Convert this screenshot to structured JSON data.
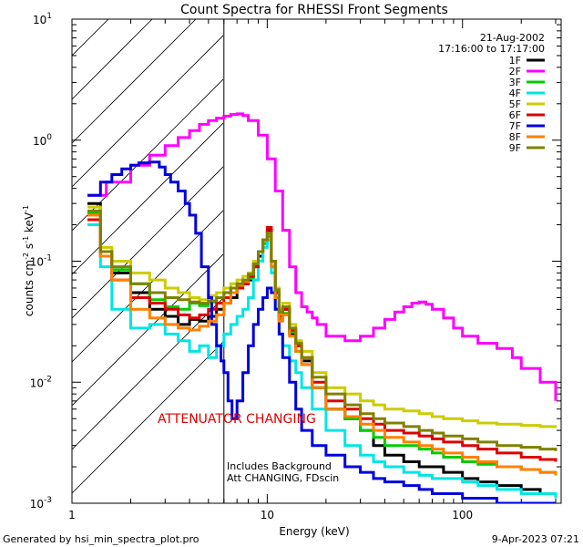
{
  "chart_data": {
    "type": "line",
    "title": "Count Spectra for RHESSI Front Segments",
    "xlabel": "Energy (keV)",
    "ylabel_base": "counts cm",
    "ylabel_sup1": "-2",
    "ylabel_mid": " s",
    "ylabel_sup2": "-1",
    "ylabel_end": " keV",
    "ylabel_sup3": "-1",
    "x_scale": "log",
    "y_scale": "log",
    "xlim": [
      1,
      320
    ],
    "ylim": [
      0.001,
      10
    ],
    "x_ticks": [
      {
        "v": 1,
        "label": "1"
      },
      {
        "v": 10,
        "label": "10"
      },
      {
        "v": 100,
        "label": "100"
      }
    ],
    "y_ticks": [
      {
        "v": 0.001,
        "base": "10",
        "exp": "-3"
      },
      {
        "v": 0.01,
        "base": "10",
        "exp": "-2"
      },
      {
        "v": 0.1,
        "base": "10",
        "exp": "-1"
      },
      {
        "v": 1,
        "base": "10",
        "exp": "0"
      },
      {
        "v": 10,
        "base": "10",
        "exp": "1"
      }
    ],
    "date": "21-Aug-2002",
    "time_range": "17:16:00 to 17:17:00",
    "attenuator_label": "ATTENUATOR CHANGING",
    "attenuator_boundary_keV": 6,
    "note_line1": "Includes Background",
    "note_line2": "Att CHANGING, FDscin",
    "footer_left": "Generated by hsi_min_spectra_plot.pro",
    "footer_right": "9-Apr-2023 07:21",
    "series": [
      {
        "name": "1F",
        "color": "#000000",
        "x": [
          1.2,
          1.4,
          1.6,
          2,
          2.5,
          3,
          3.5,
          4,
          4.5,
          5,
          5.5,
          6,
          6.5,
          7,
          7.5,
          8,
          8.5,
          9,
          9.5,
          10,
          10.5,
          11,
          11.5,
          12,
          13,
          14,
          15,
          17,
          20,
          25,
          30,
          35,
          40,
          50,
          60,
          70,
          80,
          100,
          120,
          150,
          200,
          250,
          300
        ],
        "y": [
          0.3,
          0.12,
          0.08,
          0.055,
          0.04,
          0.035,
          0.03,
          0.033,
          0.032,
          0.035,
          0.04,
          0.045,
          0.05,
          0.06,
          0.065,
          0.07,
          0.09,
          0.11,
          0.14,
          0.18,
          0.1,
          0.055,
          0.035,
          0.04,
          0.025,
          0.02,
          0.015,
          0.009,
          0.006,
          0.005,
          0.004,
          0.003,
          0.0025,
          0.0022,
          0.002,
          0.002,
          0.0018,
          0.0016,
          0.0015,
          0.0014,
          0.0013,
          0.0012,
          0.0012
        ]
      },
      {
        "name": "2F",
        "color": "#ff00ff",
        "x": [
          1.2,
          1.5,
          2,
          2.5,
          3,
          3.5,
          4,
          4.5,
          5,
          5.5,
          6,
          6.5,
          7,
          7.5,
          8,
          9,
          10,
          11,
          12,
          13,
          14,
          15,
          16,
          17,
          18,
          20,
          25,
          30,
          35,
          40,
          45,
          50,
          55,
          60,
          65,
          70,
          80,
          90,
          100,
          120,
          150,
          180,
          200,
          250,
          300
        ],
        "y": [
          0.35,
          0.45,
          0.62,
          0.75,
          0.9,
          1.05,
          1.2,
          1.35,
          1.45,
          1.52,
          1.58,
          1.63,
          1.65,
          1.6,
          1.45,
          1.1,
          0.7,
          0.38,
          0.18,
          0.09,
          0.055,
          0.042,
          0.038,
          0.034,
          0.03,
          0.024,
          0.022,
          0.024,
          0.028,
          0.033,
          0.038,
          0.042,
          0.045,
          0.046,
          0.044,
          0.04,
          0.034,
          0.028,
          0.024,
          0.021,
          0.019,
          0.016,
          0.013,
          0.01,
          0.007
        ]
      },
      {
        "name": "3F",
        "color": "#00cc00",
        "x": [
          1.2,
          1.4,
          1.6,
          2,
          2.5,
          3,
          3.5,
          4,
          4.5,
          5,
          5.5,
          6,
          6.5,
          7,
          7.5,
          8,
          8.5,
          9,
          9.5,
          10,
          10.5,
          11,
          11.5,
          12,
          13,
          14,
          15,
          17,
          20,
          25,
          30,
          35,
          40,
          50,
          60,
          70,
          80,
          100,
          120,
          150,
          200,
          250,
          300
        ],
        "y": [
          0.25,
          0.12,
          0.085,
          0.065,
          0.048,
          0.042,
          0.04,
          0.045,
          0.043,
          0.046,
          0.05,
          0.055,
          0.06,
          0.062,
          0.066,
          0.072,
          0.09,
          0.12,
          0.14,
          0.16,
          0.09,
          0.05,
          0.033,
          0.037,
          0.026,
          0.018,
          0.014,
          0.009,
          0.006,
          0.005,
          0.004,
          0.0035,
          0.003,
          0.003,
          0.0028,
          0.0026,
          0.0024,
          0.0022,
          0.0021,
          0.002,
          0.0019,
          0.0018,
          0.0017
        ]
      },
      {
        "name": "4F",
        "color": "#00e5e5",
        "x": [
          1.2,
          1.4,
          1.6,
          2,
          2.5,
          3,
          3.5,
          4,
          4.5,
          5,
          5.5,
          6,
          6.5,
          7,
          7.5,
          8,
          8.5,
          9,
          9.5,
          10,
          10.5,
          11,
          11.5,
          12,
          13,
          14,
          15,
          17,
          20,
          25,
          30,
          35,
          40,
          50,
          60,
          70,
          80,
          100,
          120,
          150,
          200,
          250,
          300
        ],
        "y": [
          0.2,
          0.09,
          0.04,
          0.028,
          0.03,
          0.025,
          0.022,
          0.018,
          0.02,
          0.016,
          0.02,
          0.025,
          0.03,
          0.035,
          0.04,
          0.05,
          0.07,
          0.1,
          0.13,
          0.15,
          0.08,
          0.04,
          0.025,
          0.02,
          0.015,
          0.012,
          0.009,
          0.006,
          0.004,
          0.003,
          0.0025,
          0.0022,
          0.002,
          0.0018,
          0.0017,
          0.0016,
          0.0016,
          0.0015,
          0.0014,
          0.0013,
          0.0012,
          0.0012,
          0.0011
        ]
      },
      {
        "name": "5F",
        "color": "#cccc00",
        "x": [
          1.2,
          1.4,
          1.6,
          2,
          2.5,
          3,
          3.5,
          4,
          4.5,
          5,
          5.5,
          6,
          6.5,
          7,
          7.5,
          8,
          8.5,
          9,
          9.5,
          10,
          10.5,
          11,
          11.5,
          12,
          13,
          14,
          15,
          17,
          20,
          25,
          30,
          35,
          40,
          50,
          60,
          70,
          80,
          100,
          120,
          150,
          200,
          250,
          300
        ],
        "y": [
          0.28,
          0.13,
          0.1,
          0.08,
          0.07,
          0.06,
          0.055,
          0.05,
          0.048,
          0.052,
          0.055,
          0.06,
          0.065,
          0.07,
          0.075,
          0.08,
          0.1,
          0.12,
          0.15,
          0.17,
          0.1,
          0.06,
          0.04,
          0.045,
          0.03,
          0.022,
          0.018,
          0.012,
          0.009,
          0.008,
          0.007,
          0.0065,
          0.006,
          0.0058,
          0.0055,
          0.0052,
          0.005,
          0.0048,
          0.0046,
          0.0045,
          0.0044,
          0.0043,
          0.0042
        ]
      },
      {
        "name": "6F",
        "color": "#dd0000",
        "x": [
          1.2,
          1.4,
          1.6,
          2,
          2.5,
          3,
          3.5,
          4,
          4.5,
          5,
          5.5,
          6,
          6.5,
          7,
          7.5,
          8,
          8.5,
          9,
          9.5,
          10,
          10.5,
          11,
          11.5,
          12,
          13,
          14,
          15,
          17,
          20,
          25,
          30,
          35,
          40,
          50,
          60,
          70,
          80,
          100,
          120,
          150,
          200,
          250,
          300
        ],
        "y": [
          0.22,
          0.11,
          0.07,
          0.05,
          0.045,
          0.04,
          0.036,
          0.034,
          0.036,
          0.04,
          0.045,
          0.05,
          0.055,
          0.06,
          0.065,
          0.075,
          0.09,
          0.12,
          0.15,
          0.19,
          0.1,
          0.055,
          0.035,
          0.04,
          0.027,
          0.02,
          0.016,
          0.01,
          0.007,
          0.006,
          0.005,
          0.0045,
          0.004,
          0.0038,
          0.0036,
          0.0034,
          0.0032,
          0.003,
          0.0028,
          0.0026,
          0.0024,
          0.0023,
          0.0022
        ]
      },
      {
        "name": "7F",
        "color": "#0000dd",
        "x": [
          1.2,
          1.4,
          1.6,
          1.8,
          2,
          2.2,
          2.5,
          2.8,
          3,
          3.2,
          3.5,
          3.8,
          4,
          4.3,
          4.6,
          5,
          5.2,
          5.5,
          5.8,
          6,
          6.3,
          6.6,
          7,
          7.5,
          8,
          8.5,
          9,
          9.5,
          10,
          10.5,
          11,
          11.5,
          12,
          13,
          14,
          15,
          17,
          20,
          25,
          30,
          35,
          40,
          50,
          60,
          70,
          80,
          100,
          120,
          150,
          200,
          250,
          300
        ],
        "y": [
          0.35,
          0.45,
          0.52,
          0.58,
          0.62,
          0.65,
          0.66,
          0.6,
          0.52,
          0.45,
          0.38,
          0.3,
          0.24,
          0.17,
          0.09,
          0.05,
          0.03,
          0.02,
          0.015,
          0.012,
          0.007,
          0.005,
          0.007,
          0.012,
          0.02,
          0.03,
          0.04,
          0.05,
          0.06,
          0.055,
          0.04,
          0.025,
          0.016,
          0.01,
          0.006,
          0.004,
          0.003,
          0.0025,
          0.002,
          0.0018,
          0.0016,
          0.0015,
          0.0014,
          0.0013,
          0.0012,
          0.0012,
          0.0011,
          0.0011,
          0.001,
          0.001,
          0.001,
          0.001
        ]
      },
      {
        "name": "8F",
        "color": "#ff8000",
        "x": [
          1.2,
          1.4,
          1.6,
          2,
          2.5,
          3,
          3.5,
          4,
          4.5,
          5,
          5.5,
          6,
          6.5,
          7,
          7.5,
          8,
          8.5,
          9,
          9.5,
          10,
          10.5,
          11,
          11.5,
          12,
          13,
          14,
          15,
          17,
          20,
          25,
          30,
          35,
          40,
          50,
          60,
          70,
          80,
          100,
          120,
          150,
          200,
          250,
          300
        ],
        "y": [
          0.24,
          0.11,
          0.07,
          0.04,
          0.034,
          0.03,
          0.028,
          0.027,
          0.029,
          0.032,
          0.036,
          0.045,
          0.055,
          0.063,
          0.068,
          0.078,
          0.095,
          0.12,
          0.15,
          0.17,
          0.09,
          0.05,
          0.032,
          0.036,
          0.024,
          0.018,
          0.014,
          0.009,
          0.006,
          0.0052,
          0.0045,
          0.004,
          0.0035,
          0.0032,
          0.003,
          0.0028,
          0.0026,
          0.0024,
          0.0022,
          0.002,
          0.0019,
          0.0018,
          0.0017
        ]
      },
      {
        "name": "9F",
        "color": "#808000",
        "x": [
          1.2,
          1.4,
          1.6,
          2,
          2.5,
          3,
          3.5,
          4,
          4.5,
          5,
          5.5,
          6,
          6.5,
          7,
          7.5,
          8,
          8.5,
          9,
          9.5,
          10,
          10.5,
          11,
          11.5,
          12,
          13,
          14,
          15,
          17,
          20,
          25,
          30,
          35,
          40,
          50,
          60,
          70,
          80,
          100,
          120,
          150,
          200,
          250,
          300
        ],
        "y": [
          0.26,
          0.12,
          0.09,
          0.065,
          0.055,
          0.05,
          0.048,
          0.046,
          0.045,
          0.047,
          0.05,
          0.055,
          0.06,
          0.065,
          0.07,
          0.078,
          0.095,
          0.12,
          0.15,
          0.17,
          0.1,
          0.058,
          0.038,
          0.042,
          0.028,
          0.021,
          0.016,
          0.011,
          0.008,
          0.0065,
          0.0055,
          0.005,
          0.0046,
          0.0043,
          0.004,
          0.0038,
          0.0036,
          0.0034,
          0.0032,
          0.003,
          0.0029,
          0.0028,
          0.0027
        ]
      }
    ]
  }
}
